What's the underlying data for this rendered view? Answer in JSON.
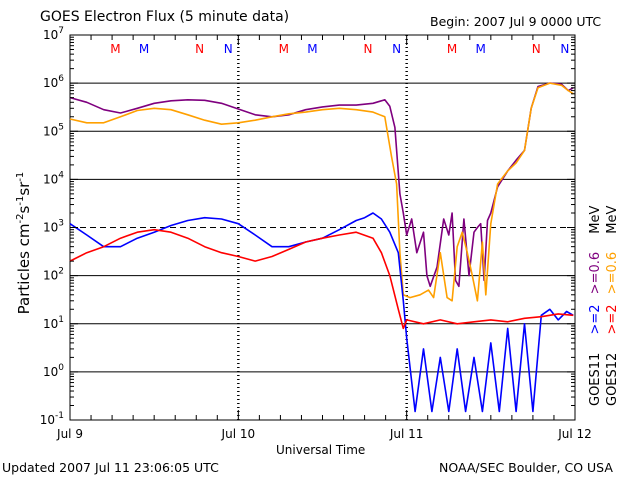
{
  "header": {
    "title": "GOES Electron Flux (5 minute data)",
    "begin": "Begin: 2007 Jul 9 0000 UTC"
  },
  "footer": {
    "updated": "Updated 2007 Jul 11 23:06:05 UTC",
    "credit": "NOAA/SEC Boulder, CO USA"
  },
  "legend": {
    "goes11": {
      "satellite": "GOES11",
      "entries": [
        {
          "label": ">=2",
          "color": "#0000ff"
        },
        {
          "label": ">=0.6",
          "color": "#7f007f"
        },
        {
          "label": "MeV",
          "color": "#000000"
        }
      ]
    },
    "goes12": {
      "satellite": "GOES12",
      "entries": [
        {
          "label": ">=2",
          "color": "#ff0000"
        },
        {
          "label": ">=0.6",
          "color": "#ffa000"
        },
        {
          "label": "MeV",
          "color": "#000000"
        }
      ]
    }
  },
  "chart_data": {
    "type": "line",
    "title": "GOES Electron Flux (5 minute data)",
    "xlabel": "Universal Time",
    "ylabel": "Particles cm-2s-1sr-1",
    "yscale": "log",
    "ylim": [
      0.1,
      10000000
    ],
    "xlim": [
      0,
      3
    ],
    "xunit": "days since 2007 Jul 9 00:00 UTC",
    "ytick_exponents": [
      -1,
      0,
      1,
      2,
      3,
      4,
      5,
      6,
      7
    ],
    "xticks": [
      {
        "value": 0,
        "label": "Jul 9"
      },
      {
        "value": 1,
        "label": "Jul 10"
      },
      {
        "value": 2,
        "label": "Jul 11"
      },
      {
        "value": 3,
        "label": "Jul 12"
      }
    ],
    "threshold_line": 1000,
    "midnight_markers": [
      {
        "label": "M",
        "satellite": "GOES12",
        "x": 0.27,
        "color": "#ff0000"
      },
      {
        "label": "M",
        "satellite": "GOES11",
        "x": 0.44,
        "color": "#0000ff"
      },
      {
        "label": "N",
        "satellite": "GOES12",
        "x": 0.77,
        "color": "#ff0000"
      },
      {
        "label": "N",
        "satellite": "GOES11",
        "x": 0.94,
        "color": "#0000ff"
      },
      {
        "label": "M",
        "satellite": "GOES12",
        "x": 1.27,
        "color": "#ff0000"
      },
      {
        "label": "M",
        "satellite": "GOES11",
        "x": 1.44,
        "color": "#0000ff"
      },
      {
        "label": "N",
        "satellite": "GOES12",
        "x": 1.77,
        "color": "#ff0000"
      },
      {
        "label": "N",
        "satellite": "GOES11",
        "x": 1.94,
        "color": "#0000ff"
      },
      {
        "label": "M",
        "satellite": "GOES12",
        "x": 2.27,
        "color": "#ff0000"
      },
      {
        "label": "M",
        "satellite": "GOES11",
        "x": 2.44,
        "color": "#0000ff"
      },
      {
        "label": "N",
        "satellite": "GOES12",
        "x": 2.77,
        "color": "#ff0000"
      },
      {
        "label": "N",
        "satellite": "GOES11",
        "x": 2.94,
        "color": "#0000ff"
      }
    ],
    "series": [
      {
        "name": "GOES11 >=0.6 MeV",
        "color": "#7f007f",
        "points": [
          [
            0,
            500000
          ],
          [
            0.1,
            400000
          ],
          [
            0.2,
            280000
          ],
          [
            0.3,
            240000
          ],
          [
            0.4,
            300000
          ],
          [
            0.5,
            380000
          ],
          [
            0.6,
            430000
          ],
          [
            0.7,
            450000
          ],
          [
            0.8,
            440000
          ],
          [
            0.9,
            380000
          ],
          [
            1.0,
            290000
          ],
          [
            1.1,
            220000
          ],
          [
            1.2,
            200000
          ],
          [
            1.3,
            220000
          ],
          [
            1.4,
            280000
          ],
          [
            1.5,
            320000
          ],
          [
            1.6,
            350000
          ],
          [
            1.7,
            350000
          ],
          [
            1.8,
            380000
          ],
          [
            1.87,
            450000
          ],
          [
            1.9,
            330000
          ],
          [
            1.93,
            120000
          ],
          [
            1.96,
            5000
          ],
          [
            1.98,
            2000
          ],
          [
            2.0,
            700
          ],
          [
            2.03,
            1500
          ],
          [
            2.06,
            300
          ],
          [
            2.1,
            800
          ],
          [
            2.12,
            100
          ],
          [
            2.14,
            60
          ],
          [
            2.18,
            150
          ],
          [
            2.22,
            1500
          ],
          [
            2.25,
            700
          ],
          [
            2.27,
            2000
          ],
          [
            2.29,
            80
          ],
          [
            2.31,
            60
          ],
          [
            2.34,
            1500
          ],
          [
            2.37,
            100
          ],
          [
            2.4,
            800
          ],
          [
            2.42,
            1000
          ],
          [
            2.44,
            1200
          ],
          [
            2.46,
            80
          ],
          [
            2.48,
            1400
          ],
          [
            2.5,
            2000
          ],
          [
            2.54,
            7000
          ],
          [
            2.6,
            15000
          ],
          [
            2.65,
            25000
          ],
          [
            2.7,
            40000
          ],
          [
            2.74,
            300000
          ],
          [
            2.78,
            850000
          ],
          [
            2.85,
            1000000
          ],
          [
            2.92,
            950000
          ],
          [
            2.96,
            700000
          ],
          [
            2.99,
            800000
          ]
        ]
      },
      {
        "name": "GOES12 >=0.6 MeV",
        "color": "#ffa000",
        "points": [
          [
            0,
            180000
          ],
          [
            0.1,
            150000
          ],
          [
            0.2,
            150000
          ],
          [
            0.3,
            200000
          ],
          [
            0.4,
            270000
          ],
          [
            0.5,
            300000
          ],
          [
            0.6,
            280000
          ],
          [
            0.7,
            220000
          ],
          [
            0.8,
            170000
          ],
          [
            0.9,
            140000
          ],
          [
            1.0,
            150000
          ],
          [
            1.1,
            170000
          ],
          [
            1.2,
            200000
          ],
          [
            1.3,
            230000
          ],
          [
            1.4,
            250000
          ],
          [
            1.5,
            280000
          ],
          [
            1.6,
            300000
          ],
          [
            1.7,
            280000
          ],
          [
            1.8,
            250000
          ],
          [
            1.87,
            200000
          ],
          [
            1.91,
            30000
          ],
          [
            1.94,
            8000
          ],
          [
            1.96,
            300
          ],
          [
            1.98,
            40
          ],
          [
            2.02,
            35
          ],
          [
            2.08,
            40
          ],
          [
            2.13,
            50
          ],
          [
            2.16,
            35
          ],
          [
            2.2,
            300
          ],
          [
            2.24,
            35
          ],
          [
            2.27,
            30
          ],
          [
            2.3,
            400
          ],
          [
            2.33,
            800
          ],
          [
            2.36,
            300
          ],
          [
            2.39,
            100
          ],
          [
            2.42,
            30
          ],
          [
            2.45,
            500
          ],
          [
            2.47,
            40
          ],
          [
            2.5,
            1200
          ],
          [
            2.54,
            8000
          ],
          [
            2.6,
            15000
          ],
          [
            2.65,
            22000
          ],
          [
            2.7,
            40000
          ],
          [
            2.74,
            300000
          ],
          [
            2.78,
            800000
          ],
          [
            2.85,
            1000000
          ],
          [
            2.92,
            900000
          ],
          [
            2.96,
            700000
          ],
          [
            2.99,
            600000
          ]
        ]
      },
      {
        "name": "GOES11 >=2 MeV",
        "color": "#0000ff",
        "points": [
          [
            0,
            1200
          ],
          [
            0.1,
            700
          ],
          [
            0.2,
            400
          ],
          [
            0.3,
            400
          ],
          [
            0.4,
            600
          ],
          [
            0.5,
            800
          ],
          [
            0.6,
            1100
          ],
          [
            0.7,
            1400
          ],
          [
            0.8,
            1600
          ],
          [
            0.9,
            1500
          ],
          [
            1.0,
            1200
          ],
          [
            1.1,
            700
          ],
          [
            1.2,
            400
          ],
          [
            1.3,
            400
          ],
          [
            1.4,
            500
          ],
          [
            1.5,
            600
          ],
          [
            1.6,
            900
          ],
          [
            1.7,
            1400
          ],
          [
            1.75,
            1600
          ],
          [
            1.8,
            2000
          ],
          [
            1.85,
            1500
          ],
          [
            1.9,
            800
          ],
          [
            1.95,
            300
          ],
          [
            1.98,
            30
          ],
          [
            2.0,
            5
          ],
          [
            2.05,
            0.15
          ],
          [
            2.1,
            3
          ],
          [
            2.15,
            0.15
          ],
          [
            2.2,
            2
          ],
          [
            2.25,
            0.15
          ],
          [
            2.3,
            3
          ],
          [
            2.35,
            0.15
          ],
          [
            2.4,
            2
          ],
          [
            2.45,
            0.15
          ],
          [
            2.5,
            4
          ],
          [
            2.55,
            0.15
          ],
          [
            2.6,
            8
          ],
          [
            2.65,
            0.15
          ],
          [
            2.7,
            10
          ],
          [
            2.75,
            0.15
          ],
          [
            2.8,
            15
          ],
          [
            2.85,
            20
          ],
          [
            2.9,
            12
          ],
          [
            2.95,
            18
          ],
          [
            2.99,
            15
          ]
        ]
      },
      {
        "name": "GOES12 >=2 MeV",
        "color": "#ff0000",
        "points": [
          [
            0,
            200
          ],
          [
            0.1,
            300
          ],
          [
            0.2,
            400
          ],
          [
            0.3,
            600
          ],
          [
            0.4,
            800
          ],
          [
            0.5,
            900
          ],
          [
            0.6,
            800
          ],
          [
            0.7,
            600
          ],
          [
            0.8,
            400
          ],
          [
            0.9,
            300
          ],
          [
            1.0,
            250
          ],
          [
            1.1,
            200
          ],
          [
            1.2,
            250
          ],
          [
            1.3,
            350
          ],
          [
            1.4,
            500
          ],
          [
            1.5,
            600
          ],
          [
            1.6,
            700
          ],
          [
            1.7,
            800
          ],
          [
            1.8,
            600
          ],
          [
            1.85,
            300
          ],
          [
            1.9,
            100
          ],
          [
            1.95,
            20
          ],
          [
            1.98,
            8
          ],
          [
            2.0,
            12
          ],
          [
            2.1,
            10
          ],
          [
            2.2,
            12
          ],
          [
            2.3,
            10
          ],
          [
            2.4,
            11
          ],
          [
            2.5,
            12
          ],
          [
            2.6,
            11
          ],
          [
            2.7,
            13
          ],
          [
            2.8,
            14
          ],
          [
            2.9,
            16
          ],
          [
            2.99,
            15
          ]
        ]
      }
    ]
  }
}
